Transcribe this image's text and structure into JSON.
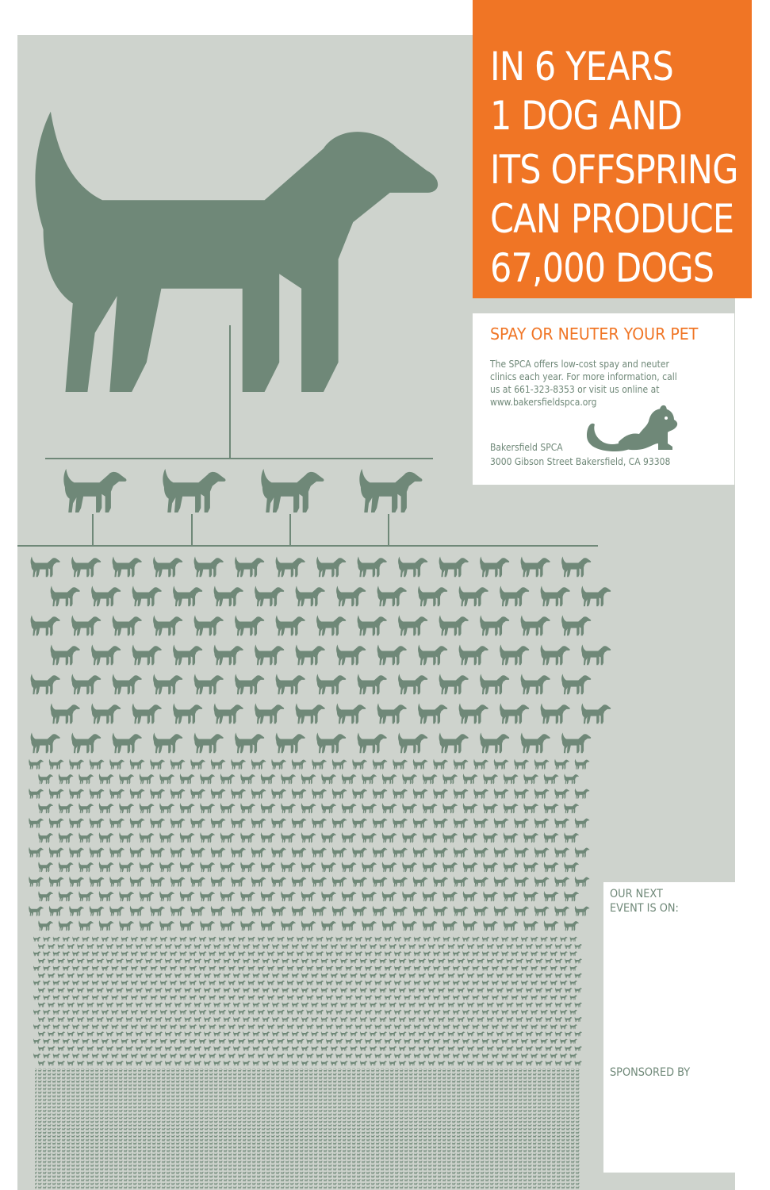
{
  "headline": {
    "lines": [
      "IN 6 YEARS",
      "1 DOG AND",
      "ITS OFFSPRING",
      "CAN PRODUCE",
      "67,000 DOGS"
    ]
  },
  "info": {
    "title": "SPAY OR NEUTER YOUR PET",
    "body_lines": [
      "The SPCA offers low-cost spay and neuter",
      "clinics each year. For more information, call",
      "us at 661-323-8353 or visit us online at",
      "www.bakersfieldspca.org"
    ],
    "org_name": "Bakersfield SPCA",
    "org_address": "3000 Gibson Street  Bakersfield, CA 93308"
  },
  "event": {
    "label_lines": [
      "OUR NEXT",
      "EVENT IS ON:"
    ],
    "sponsor_label": "SPONSORED BY"
  },
  "colors": {
    "orange": "#f07525",
    "background": "#ced3cd",
    "dog": "#6f8878"
  }
}
